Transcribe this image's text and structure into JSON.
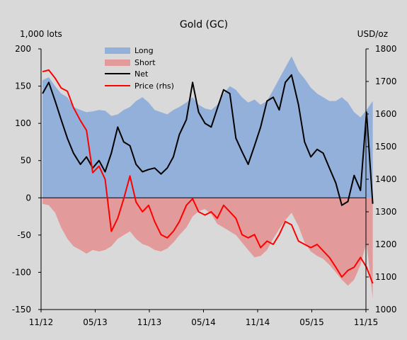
{
  "chart_data": {
    "type": "area",
    "title": "Gold (GC)",
    "left_axis": {
      "unit": "1,000 lots",
      "range": [
        -150,
        200
      ],
      "ticks": [
        200,
        150,
        100,
        50,
        0,
        -50,
        -100,
        -150
      ]
    },
    "right_axis": {
      "unit": "USD/oz",
      "range": [
        1000,
        1800
      ],
      "ticks": [
        1800,
        1700,
        1600,
        1500,
        1400,
        1300,
        1200,
        1100,
        1000
      ]
    },
    "x_labels": [
      "11/12",
      "05/13",
      "11/13",
      "05/14",
      "11/14",
      "05/15",
      "11/15"
    ],
    "x_range": [
      "2012-11",
      "2015-11"
    ],
    "legend": {
      "position": "top-center",
      "items": [
        {
          "label": "Long",
          "type": "area",
          "color": "#92b0d9"
        },
        {
          "label": "Short",
          "type": "area",
          "color": "#e39a9a"
        },
        {
          "label": "Net",
          "type": "line",
          "color": "#000000"
        },
        {
          "label": "Price (rhs)",
          "type": "line",
          "color": "#ff0000"
        }
      ]
    },
    "grid": false,
    "series": [
      {
        "name": "Long",
        "axis": "left",
        "x": [
          "2012-11-06",
          "2012-11-27",
          "2012-12-18",
          "2013-01-08",
          "2013-01-29",
          "2013-02-19",
          "2013-03-12",
          "2013-04-02",
          "2013-04-23",
          "2013-05-14",
          "2013-06-04",
          "2013-06-25",
          "2013-07-16",
          "2013-08-06",
          "2013-08-27",
          "2013-09-17",
          "2013-10-08",
          "2013-10-29",
          "2013-11-19",
          "2013-12-10",
          "2013-12-31",
          "2014-01-21",
          "2014-02-11",
          "2014-03-04",
          "2014-03-25",
          "2014-04-15",
          "2014-05-06",
          "2014-05-27",
          "2014-06-17",
          "2014-07-08",
          "2014-07-29",
          "2014-08-19",
          "2014-09-09",
          "2014-09-30",
          "2014-10-21",
          "2014-11-11",
          "2014-12-02",
          "2014-12-23",
          "2015-01-13",
          "2015-02-03",
          "2015-02-24",
          "2015-03-17",
          "2015-04-07",
          "2015-04-28",
          "2015-05-19",
          "2015-06-09",
          "2015-06-30",
          "2015-07-21",
          "2015-08-11",
          "2015-09-01",
          "2015-09-22",
          "2015-10-13",
          "2015-11-03",
          "2015-11-24"
        ],
        "values": [
          158,
          162,
          150,
          140,
          135,
          122,
          118,
          115,
          116,
          118,
          117,
          110,
          112,
          118,
          122,
          130,
          135,
          128,
          118,
          115,
          112,
          118,
          122,
          128,
          135,
          125,
          120,
          118,
          125,
          140,
          150,
          145,
          135,
          128,
          132,
          125,
          130,
          145,
          160,
          175,
          190,
          170,
          160,
          148,
          140,
          135,
          130,
          130,
          135,
          128,
          115,
          108,
          118,
          130
        ]
      },
      {
        "name": "Short",
        "axis": "left",
        "x": [
          "2012-11-06",
          "2012-11-27",
          "2012-12-18",
          "2013-01-08",
          "2013-01-29",
          "2013-02-19",
          "2013-03-12",
          "2013-04-02",
          "2013-04-23",
          "2013-05-14",
          "2013-06-04",
          "2013-06-25",
          "2013-07-16",
          "2013-08-06",
          "2013-08-27",
          "2013-09-17",
          "2013-10-08",
          "2013-10-29",
          "2013-11-19",
          "2013-12-10",
          "2013-12-31",
          "2014-01-21",
          "2014-02-11",
          "2014-03-04",
          "2014-03-25",
          "2014-04-15",
          "2014-05-06",
          "2014-05-27",
          "2014-06-17",
          "2014-07-08",
          "2014-07-29",
          "2014-08-19",
          "2014-09-09",
          "2014-09-30",
          "2014-10-21",
          "2014-11-11",
          "2014-12-02",
          "2014-12-23",
          "2015-01-13",
          "2015-02-03",
          "2015-02-24",
          "2015-03-17",
          "2015-04-07",
          "2015-04-28",
          "2015-05-19",
          "2015-06-09",
          "2015-06-30",
          "2015-07-21",
          "2015-08-11",
          "2015-09-01",
          "2015-09-22",
          "2015-10-13",
          "2015-11-03",
          "2015-11-24"
        ],
        "values": [
          -8,
          -10,
          -20,
          -40,
          -55,
          -65,
          -70,
          -75,
          -70,
          -72,
          -70,
          -65,
          -55,
          -50,
          -45,
          -55,
          -62,
          -65,
          -70,
          -72,
          -68,
          -60,
          -50,
          -40,
          -25,
          -18,
          -15,
          -22,
          -35,
          -40,
          -45,
          -50,
          -60,
          -70,
          -80,
          -78,
          -70,
          -55,
          -42,
          -30,
          -20,
          -38,
          -60,
          -72,
          -78,
          -82,
          -90,
          -100,
          -110,
          -118,
          -110,
          -90,
          -60,
          -135
        ]
      },
      {
        "name": "Net",
        "axis": "left",
        "x": [
          "2012-11-06",
          "2012-11-27",
          "2012-12-18",
          "2013-01-08",
          "2013-01-29",
          "2013-02-19",
          "2013-03-12",
          "2013-04-02",
          "2013-04-23",
          "2013-05-14",
          "2013-06-04",
          "2013-06-25",
          "2013-07-16",
          "2013-08-06",
          "2013-08-27",
          "2013-09-17",
          "2013-10-08",
          "2013-10-29",
          "2013-11-19",
          "2013-12-10",
          "2013-12-31",
          "2014-01-21",
          "2014-02-11",
          "2014-03-04",
          "2014-03-25",
          "2014-04-15",
          "2014-05-06",
          "2014-05-27",
          "2014-06-17",
          "2014-07-08",
          "2014-07-29",
          "2014-08-19",
          "2014-09-09",
          "2014-09-30",
          "2014-10-21",
          "2014-11-11",
          "2014-12-02",
          "2014-12-23",
          "2015-01-13",
          "2015-02-03",
          "2015-02-24",
          "2015-03-17",
          "2015-04-07",
          "2015-04-28",
          "2015-05-19",
          "2015-06-09",
          "2015-06-30",
          "2015-07-21",
          "2015-08-11",
          "2015-09-01",
          "2015-09-22",
          "2015-10-13",
          "2015-11-03",
          "2015-11-24"
        ],
        "values": [
          140,
          155,
          130,
          105,
          80,
          60,
          45,
          55,
          40,
          50,
          35,
          60,
          95,
          75,
          70,
          45,
          35,
          38,
          40,
          32,
          40,
          55,
          85,
          105,
          155,
          115,
          100,
          95,
          120,
          145,
          140,
          80,
          62,
          45,
          70,
          95,
          130,
          135,
          118,
          155,
          165,
          125,
          75,
          55,
          65,
          60,
          40,
          20,
          -10,
          -5,
          30,
          10,
          115,
          -8
        ]
      },
      {
        "name": "Price (rhs)",
        "axis": "right",
        "x": [
          "2012-11-06",
          "2012-11-27",
          "2012-12-18",
          "2013-01-08",
          "2013-01-29",
          "2013-02-19",
          "2013-03-12",
          "2013-04-02",
          "2013-04-23",
          "2013-05-14",
          "2013-06-04",
          "2013-06-25",
          "2013-07-16",
          "2013-08-06",
          "2013-08-27",
          "2013-09-17",
          "2013-10-08",
          "2013-10-29",
          "2013-11-19",
          "2013-12-10",
          "2013-12-31",
          "2014-01-21",
          "2014-02-11",
          "2014-03-04",
          "2014-03-25",
          "2014-04-15",
          "2014-05-06",
          "2014-05-27",
          "2014-06-17",
          "2014-07-08",
          "2014-07-29",
          "2014-08-19",
          "2014-09-09",
          "2014-09-30",
          "2014-10-21",
          "2014-11-11",
          "2014-12-02",
          "2014-12-23",
          "2015-01-13",
          "2015-02-03",
          "2015-02-24",
          "2015-03-17",
          "2015-04-07",
          "2015-04-28",
          "2015-05-19",
          "2015-06-09",
          "2015-06-30",
          "2015-07-21",
          "2015-08-11",
          "2015-09-01",
          "2015-09-22",
          "2015-10-13",
          "2015-11-03",
          "2015-11-24"
        ],
        "values": [
          1730,
          1735,
          1710,
          1680,
          1670,
          1620,
          1580,
          1550,
          1420,
          1440,
          1400,
          1240,
          1280,
          1340,
          1410,
          1330,
          1300,
          1320,
          1270,
          1230,
          1220,
          1240,
          1270,
          1320,
          1340,
          1300,
          1290,
          1300,
          1280,
          1320,
          1300,
          1280,
          1230,
          1220,
          1230,
          1190,
          1210,
          1200,
          1230,
          1270,
          1260,
          1210,
          1200,
          1190,
          1200,
          1180,
          1160,
          1130,
          1100,
          1120,
          1130,
          1160,
          1130,
          1080
        ]
      }
    ]
  }
}
